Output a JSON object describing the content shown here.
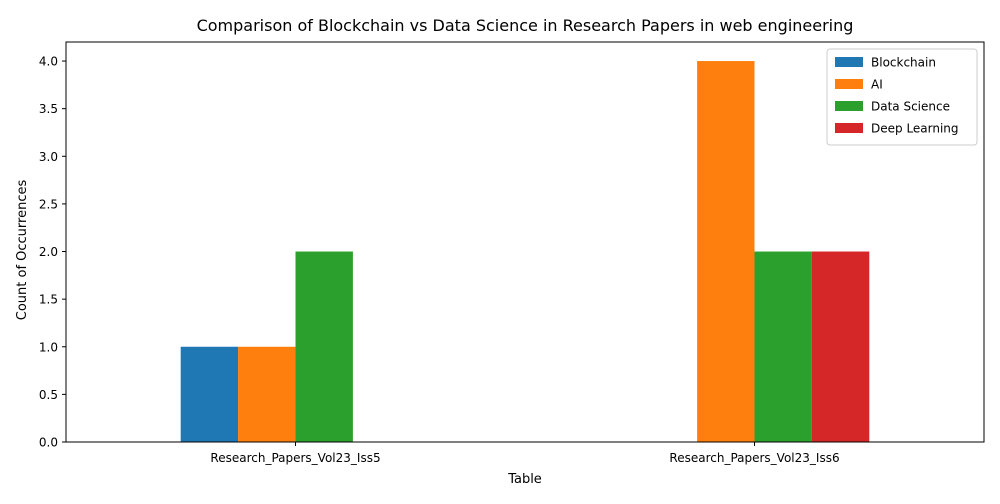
{
  "chart_data": {
    "type": "bar",
    "title": "Comparison of Blockchain vs Data Science in Research Papers in web engineering",
    "xlabel": "Table",
    "ylabel": "Count of Occurrences",
    "categories": [
      "Research_Papers_Vol23_Iss5",
      "Research_Papers_Vol23_Iss6"
    ],
    "series": [
      {
        "name": "Blockchain",
        "values": [
          1,
          0
        ],
        "color": "#1f77b4"
      },
      {
        "name": "AI",
        "values": [
          1,
          4
        ],
        "color": "#ff7f0e"
      },
      {
        "name": "Data Science",
        "values": [
          2,
          2
        ],
        "color": "#2ca02c"
      },
      {
        "name": "Deep Learning",
        "values": [
          0,
          2
        ],
        "color": "#d62728"
      }
    ],
    "ylim": [
      0,
      4.2
    ],
    "yticks": [
      "0.0",
      "0.5",
      "1.0",
      "1.5",
      "2.0",
      "2.5",
      "3.0",
      "3.5",
      "4.0"
    ],
    "grid": false,
    "legend_position": "top-right"
  }
}
